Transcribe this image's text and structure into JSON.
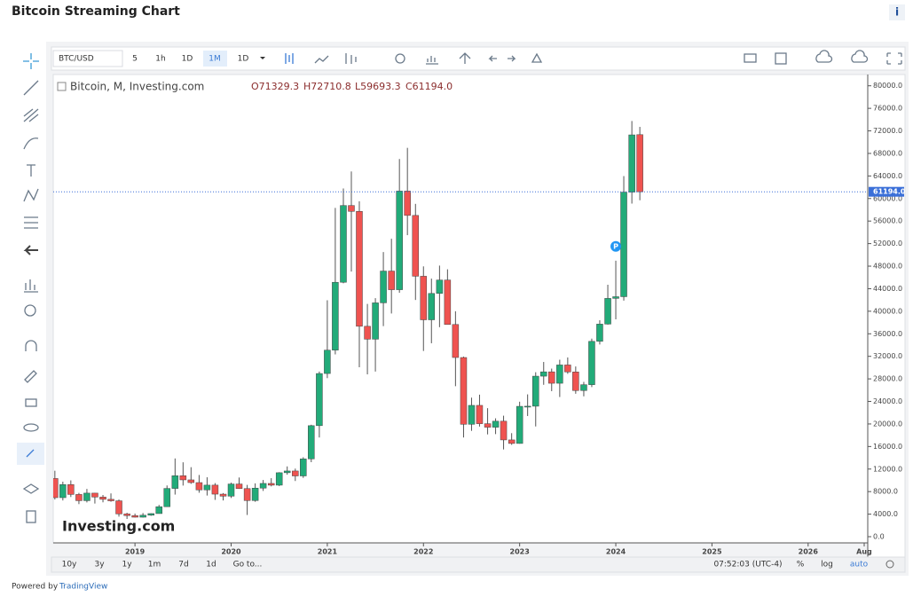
{
  "ui": {
    "title": "Bitcoin Streaming Chart",
    "info": "i",
    "symbol": "BTC/USD",
    "intervals": [
      "5",
      "1h",
      "1D",
      "1M",
      "1D"
    ],
    "ranges": [
      "10y",
      "3y",
      "1y",
      "1m",
      "7d",
      "1d",
      "Go to..."
    ],
    "clock": "07:52:03 (UTC-4)",
    "scale_buttons": [
      "%",
      "log",
      "auto"
    ],
    "powered_by": "Powered by",
    "provider": "TradingView",
    "watermark": "Investing.com"
  },
  "chart_data": {
    "type": "candlestick",
    "grid": false,
    "ohlc_legend": [
      "O71329.3",
      "H72710.8",
      "L59693.3",
      "C61194.0"
    ],
    "xlim": [
      2018.15,
      2026.62
    ],
    "xticks": [
      2019,
      2020,
      2021,
      2022,
      2023,
      2024,
      2025,
      2026,
      {
        "value": 2026.583,
        "label": "Aug"
      }
    ],
    "ylim": [
      -1100,
      82000
    ],
    "yticks": [
      {
        "value": 0,
        "label": "0.0"
      },
      {
        "value": 4000,
        "label": "4000.0"
      },
      {
        "value": 8000,
        "label": "8000.0"
      },
      {
        "value": 12000,
        "label": "12000.0"
      },
      {
        "value": 16000,
        "label": "16000.0"
      },
      {
        "value": 20000,
        "label": "20000.0"
      },
      {
        "value": 24000,
        "label": "24000.0"
      },
      {
        "value": 28000,
        "label": "28000.0"
      },
      {
        "value": 32000,
        "label": "32000.0"
      },
      {
        "value": 36000,
        "label": "36000.0"
      },
      {
        "value": 40000,
        "label": "40000.0"
      },
      {
        "value": 44000,
        "label": "44000.0"
      },
      {
        "value": 48000,
        "label": "48000.0"
      },
      {
        "value": 52000,
        "label": "52000.0"
      },
      {
        "value": 56000,
        "label": "56000.0"
      },
      {
        "value": 60000,
        "label": "60000.0"
      },
      {
        "value": 64000,
        "label": "64000.0"
      },
      {
        "value": 68000,
        "label": "68000.0"
      },
      {
        "value": 72000,
        "label": "72000.0"
      },
      {
        "value": 76000,
        "label": "76000.0"
      },
      {
        "value": 80000,
        "label": "80000.0"
      }
    ],
    "price_line": {
      "value": 61194.0,
      "label": "61194.0",
      "color": "#3a6fd8"
    },
    "annotations": [
      {
        "text": "P",
        "x": 2024.0,
        "y": 51500,
        "color": "#2196f3"
      }
    ],
    "series": [
      {
        "name": "Bitcoin, M, Investing.com",
        "up_color": "#22ab79",
        "down_color": "#ef5350",
        "x": [
          2018.167,
          2018.25,
          2018.333,
          2018.417,
          2018.5,
          2018.583,
          2018.667,
          2018.75,
          2018.833,
          2018.917,
          2019,
          2019.083,
          2019.167,
          2019.25,
          2019.333,
          2019.417,
          2019.5,
          2019.583,
          2019.667,
          2019.75,
          2019.833,
          2019.917,
          2020,
          2020.083,
          2020.167,
          2020.25,
          2020.333,
          2020.417,
          2020.5,
          2020.583,
          2020.667,
          2020.75,
          2020.833,
          2020.917,
          2021,
          2021.083,
          2021.167,
          2021.25,
          2021.333,
          2021.417,
          2021.5,
          2021.583,
          2021.667,
          2021.75,
          2021.833,
          2021.917,
          2022,
          2022.083,
          2022.167,
          2022.25,
          2022.333,
          2022.417,
          2022.5,
          2022.583,
          2022.667,
          2022.75,
          2022.833,
          2022.917,
          2023,
          2023.083,
          2023.167,
          2023.25,
          2023.333,
          2023.417,
          2023.5,
          2023.583,
          2023.667,
          2023.75,
          2023.833,
          2023.917,
          2024,
          2024.083,
          2024.167,
          2024.25
        ],
        "open": [
          10326,
          6926,
          9245,
          7495,
          6390,
          7730,
          7030,
          6630,
          6370,
          4040,
          3740,
          3460,
          3810,
          4100,
          5320,
          8560,
          10820,
          10080,
          9600,
          8300,
          9150,
          7550,
          7190,
          9350,
          8540,
          6410,
          8620,
          9450,
          9140,
          11350,
          11660,
          10780,
          13800,
          19700,
          28950,
          33100,
          45140,
          58760,
          57720,
          37330,
          35040,
          41490,
          47130,
          43820,
          61320,
          57000,
          46210,
          38480,
          43160,
          45540,
          37650,
          31790,
          19940,
          23300,
          20050,
          19420,
          20490,
          17170,
          16540,
          23130,
          23150,
          28480,
          29250,
          27220,
          30470,
          29230,
          25930,
          26970,
          34660,
          37720,
          42280,
          42580,
          61130,
          71329.3
        ],
        "high": [
          11700,
          9760,
          9990,
          7770,
          8480,
          7760,
          7400,
          7680,
          6600,
          4250,
          4100,
          4200,
          4140,
          5640,
          9090,
          13880,
          13200,
          12330,
          10950,
          10540,
          9510,
          7740,
          9580,
          10500,
          9190,
          9460,
          10060,
          10380,
          11440,
          12470,
          12080,
          14100,
          19860,
          29300,
          41950,
          58330,
          61780,
          64800,
          59520,
          41300,
          42320,
          50500,
          52860,
          67000,
          68990,
          59050,
          47960,
          45790,
          48100,
          47440,
          40000,
          31950,
          24670,
          25200,
          22800,
          21000,
          21470,
          18370,
          23950,
          25250,
          29180,
          31000,
          29820,
          31400,
          31800,
          30200,
          27470,
          35140,
          38400,
          44700,
          48970,
          63980,
          73750,
          72710.8
        ],
        "low": [
          6600,
          6430,
          7040,
          5780,
          6080,
          5880,
          6100,
          6200,
          3560,
          3150,
          3400,
          3400,
          3700,
          4090,
          5330,
          7470,
          9070,
          9380,
          7800,
          7300,
          6530,
          6430,
          6870,
          8480,
          3850,
          6200,
          8120,
          8930,
          8980,
          11000,
          9880,
          10430,
          13220,
          17600,
          28130,
          32350,
          44960,
          47040,
          30070,
          28800,
          29300,
          37360,
          39600,
          43290,
          53500,
          42000,
          32950,
          34320,
          37170,
          37700,
          26700,
          17600,
          18780,
          19540,
          18150,
          18200,
          15480,
          16300,
          16500,
          21410,
          19560,
          26950,
          25820,
          24780,
          28900,
          25360,
          24900,
          26540,
          34100,
          37630,
          38560,
          41880,
          59100,
          59693.3
        ],
        "close": [
          6926,
          9245,
          7495,
          6390,
          7730,
          7030,
          6630,
          6370,
          4040,
          3740,
          3460,
          3810,
          4100,
          5320,
          8560,
          10820,
          10080,
          9600,
          8300,
          9150,
          7550,
          7190,
          9350,
          8540,
          6410,
          8620,
          9450,
          9140,
          11350,
          11660,
          10780,
          13800,
          19700,
          28950,
          33100,
          45140,
          58760,
          57720,
          37330,
          35040,
          41490,
          47130,
          43820,
          61320,
          57000,
          46210,
          38480,
          43160,
          45540,
          37650,
          31790,
          19940,
          23300,
          20050,
          19420,
          20490,
          17170,
          16540,
          23130,
          23150,
          28480,
          29250,
          27220,
          30470,
          29230,
          25930,
          26970,
          34660,
          37720,
          42280,
          42580,
          61130,
          71290,
          61194.0
        ]
      }
    ]
  }
}
